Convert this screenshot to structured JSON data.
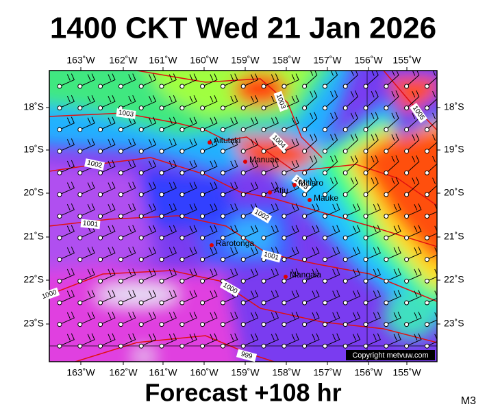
{
  "title": "1400 CKT Wed 21 Jan 2026",
  "map": {
    "lon_labels": [
      "163˚W",
      "162˚W",
      "161˚W",
      "160˚W",
      "159˚W",
      "158˚W",
      "157˚W",
      "156˚W",
      "155˚W"
    ],
    "lat_labels": [
      "18˚S",
      "19˚S",
      "20˚S",
      "21˚S",
      "22˚S",
      "23˚S"
    ],
    "places": [
      "Aitutaki",
      "Manuae",
      "Atiu",
      "Mitiaro",
      "Mauke",
      "Rarotonga",
      "Mangaia"
    ],
    "isobar_labels": [
      "1003",
      "1002",
      "1001",
      "1000",
      "999",
      "1003",
      "1004",
      "1005",
      "1003",
      "1002",
      "1001",
      "1000"
    ],
    "copyright": "Copyright metvuw.com"
  },
  "footer": {
    "forecast": "Forecast +108 hr",
    "code": "M3"
  }
}
